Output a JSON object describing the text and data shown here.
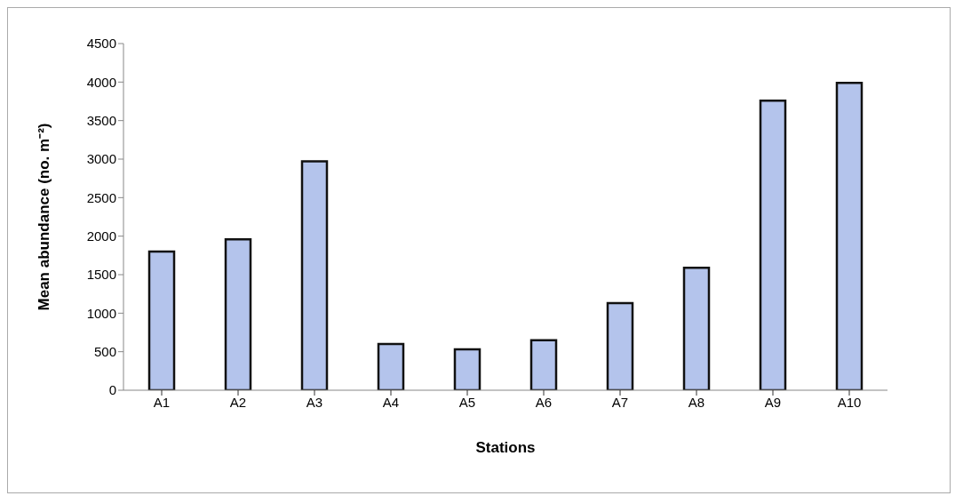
{
  "chart_data": {
    "type": "bar",
    "xlabel": "Stations",
    "ylabel": "Mean abundance (no. m⁻²)",
    "categories": [
      "A1",
      "A2",
      "A3",
      "A4",
      "A5",
      "A6",
      "A7",
      "A8",
      "A9",
      "A10"
    ],
    "values": [
      1800,
      1960,
      2970,
      600,
      530,
      650,
      1130,
      1590,
      3760,
      3990
    ],
    "color": "#b4c4ec",
    "ylim": [
      0,
      4500
    ],
    "yticks": [
      0,
      500,
      1000,
      1500,
      2000,
      2500,
      3000,
      3500,
      4000,
      4500
    ],
    "grid": false,
    "legend": false
  }
}
